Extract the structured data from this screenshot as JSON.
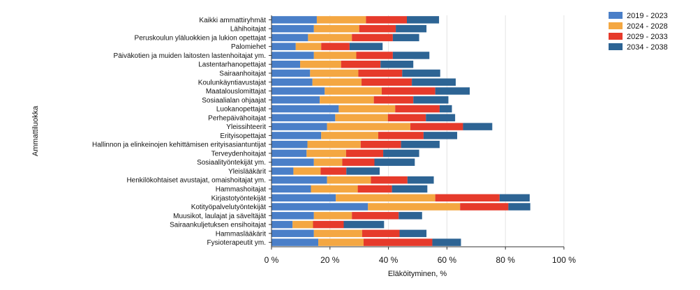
{
  "chart_data": {
    "type": "bar",
    "orientation": "horizontal",
    "stacked": true,
    "title": "",
    "xlabel": "Eläköityminen, %",
    "ylabel": "Ammattiluokka",
    "xlim": [
      0,
      100
    ],
    "x_ticks": [
      "0 %",
      "20 %",
      "40 %",
      "60 %",
      "80 %",
      "100 %"
    ],
    "legend_position": "top-right",
    "categories": [
      "Kaikki ammattiryhmät",
      "Lähihoitajat",
      "Peruskoulun yläluokkien ja lukion opettajat",
      "Palomiehet",
      "Päiväkotien ja muiden laitosten lastenhoitajat ym.",
      "Lastentarhanopettajat",
      "Sairaanhoitajat",
      "Koulunkäyntiavustajat",
      "Maatalouslomittajat",
      "Sosiaalialan ohjaajat",
      "Luokanopettajat",
      "Perhepäivähoitajat",
      "Yleissihteerit",
      "Erityisopettajat",
      "Hallinnon ja elinkeinojen kehittämisen erityisasiantuntijat",
      "Terveydenhoitajat",
      "Sosiaalityöntekijät ym.",
      "Yleislääkärit",
      "Henkilökohtaiset avustajat, omaishoitajat ym.",
      "Hammashoitajat",
      "Kirjastotyöntekijät",
      "Kotityöpalvelutyöntekijät",
      "Muusikot, laulajat ja säveltäjät",
      "Sairaankuljetuksen ensihoitajat",
      "Hammaslääkärit",
      "Fysioterapeutit ym."
    ],
    "series": [
      {
        "name": "2019 - 2023",
        "color": "#4a7fc8",
        "values": [
          15.5,
          14.5,
          12.5,
          8.3,
          14.5,
          9.8,
          13.2,
          14.0,
          18.2,
          16.5,
          23.0,
          21.8,
          19.0,
          17.0,
          12.3,
          12.0,
          14.5,
          7.5,
          19.0,
          13.5,
          22.0,
          33.0,
          14.5,
          7.2,
          14.5,
          16.0
        ]
      },
      {
        "name": "2024 - 2028",
        "color": "#f4a742",
        "values": [
          16.8,
          15.5,
          15.0,
          8.7,
          14.5,
          14.0,
          16.5,
          16.8,
          19.5,
          18.5,
          19.3,
          18.0,
          28.5,
          19.5,
          18.2,
          13.5,
          9.7,
          9.3,
          15.0,
          16.0,
          34.0,
          31.5,
          13.0,
          7.0,
          16.5,
          15.5
        ]
      },
      {
        "name": "2029 - 2033",
        "color": "#e63a2b",
        "values": [
          14.0,
          12.5,
          14.0,
          9.7,
          12.5,
          13.5,
          15.0,
          17.2,
          18.3,
          13.5,
          15.2,
          13.0,
          18.0,
          15.5,
          13.8,
          12.7,
          11.0,
          8.8,
          12.5,
          11.7,
          22.0,
          16.5,
          16.0,
          10.5,
          12.8,
          23.5
        ]
      },
      {
        "name": "2034 - 2038",
        "color": "#2d6494",
        "values": [
          11.0,
          10.5,
          9.0,
          11.3,
          12.5,
          11.2,
          13.0,
          15.0,
          11.8,
          12.0,
          4.2,
          10.0,
          10.0,
          11.5,
          13.2,
          12.3,
          13.8,
          11.4,
          9.0,
          12.1,
          10.3,
          7.5,
          8.0,
          13.8,
          9.2,
          9.8
        ]
      }
    ]
  }
}
